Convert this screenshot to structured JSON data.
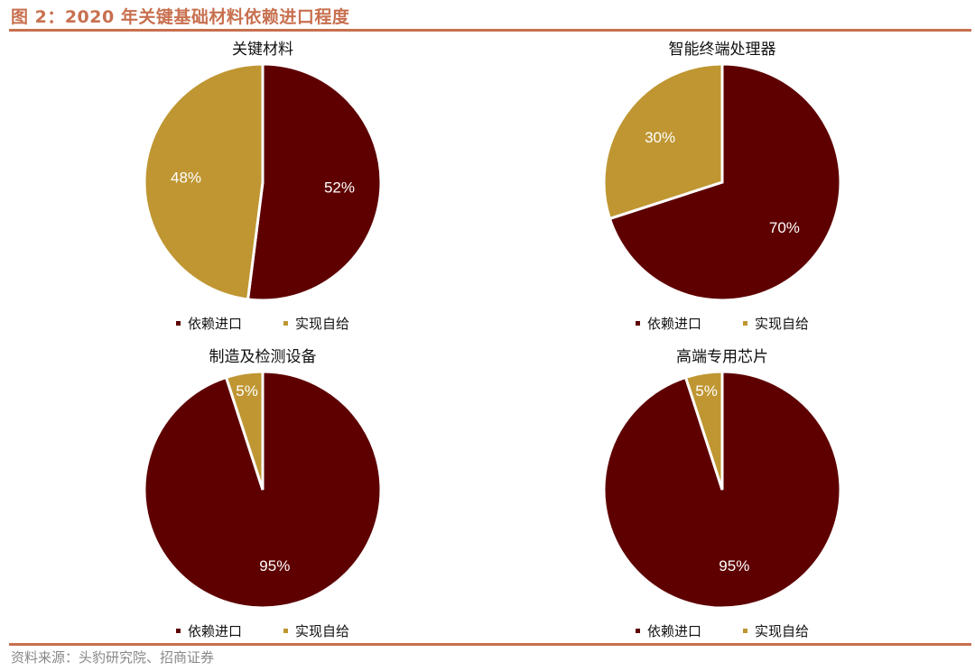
{
  "figure_title": "图 2：2020 年关键基础材料依赖进口程度",
  "source": "资料来源：头豹研究院、招商证券",
  "colors": {
    "accent": "#C8704F",
    "import": "#5E0000",
    "self": "#BF9632"
  },
  "chart_data": [
    {
      "type": "pie",
      "title": "关键材料",
      "labels": [
        "依赖进口",
        "实现自给"
      ],
      "values": [
        52,
        48
      ],
      "data_labels": [
        "52%",
        "48%"
      ],
      "legend": "bottom"
    },
    {
      "type": "pie",
      "title": "智能终端处理器",
      "labels": [
        "依赖进口",
        "实现自给"
      ],
      "values": [
        70,
        30
      ],
      "data_labels": [
        "70%",
        "30%"
      ],
      "legend": "bottom"
    },
    {
      "type": "pie",
      "title": "制造及检测设备",
      "labels": [
        "依赖进口",
        "实现自给"
      ],
      "values": [
        95,
        5
      ],
      "data_labels": [
        "95%",
        "5%"
      ],
      "legend": "bottom"
    },
    {
      "type": "pie",
      "title": "高端专用芯片",
      "labels": [
        "依赖进口",
        "实现自给"
      ],
      "values": [
        95,
        5
      ],
      "data_labels": [
        "95%",
        "5%"
      ],
      "legend": "bottom"
    }
  ]
}
